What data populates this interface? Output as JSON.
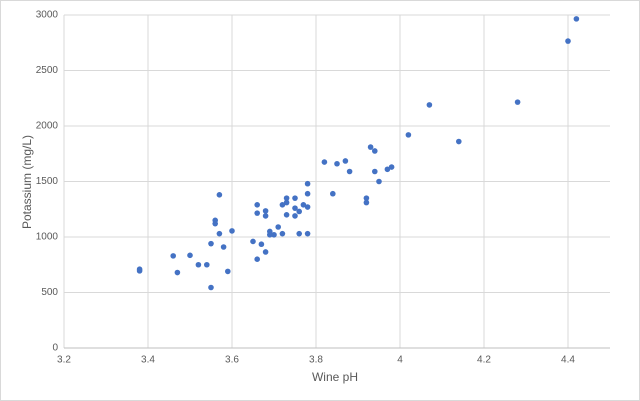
{
  "chart_data": {
    "type": "scatter",
    "x_label": "Wine pH",
    "y_label": "Potassium (mg/L)",
    "color": "#4472c4",
    "grid": true,
    "xlim": [
      3.2,
      4.5
    ],
    "xticks": [
      3.2,
      3.4,
      3.6,
      3.8,
      4,
      4.2,
      4.4
    ],
    "ylim": [
      0,
      3000
    ],
    "yticks": [
      0,
      500,
      1000,
      1500,
      2000,
      2500,
      3000
    ],
    "x": [
      3.38,
      3.38,
      3.46,
      3.47,
      3.5,
      3.52,
      3.54,
      3.55,
      3.55,
      3.56,
      3.56,
      3.57,
      3.57,
      3.58,
      3.59,
      3.6,
      3.65,
      3.66,
      3.66,
      3.66,
      3.67,
      3.68,
      3.68,
      3.68,
      3.69,
      3.69,
      3.7,
      3.71,
      3.72,
      3.72,
      3.73,
      3.73,
      3.73,
      3.75,
      3.75,
      3.75,
      3.76,
      3.76,
      3.77,
      3.78,
      3.78,
      3.78,
      3.78,
      3.82,
      3.84,
      3.85,
      3.87,
      3.88,
      3.92,
      3.92,
      3.93,
      3.94,
      3.94,
      3.95,
      3.97,
      3.98,
      4.02,
      4.07,
      4.14,
      4.28,
      4.4,
      4.42
    ],
    "values": [
      710,
      695,
      830,
      680,
      835,
      750,
      750,
      545,
      940,
      1120,
      1150,
      1380,
      1030,
      910,
      690,
      1055,
      960,
      1290,
      1215,
      800,
      935,
      1190,
      1235,
      865,
      1020,
      1050,
      1020,
      1090,
      1290,
      1030,
      1310,
      1350,
      1200,
      1350,
      1260,
      1190,
      1030,
      1230,
      1290,
      1480,
      1390,
      1270,
      1030,
      1675,
      1390,
      1660,
      1685,
      1590,
      1350,
      1310,
      1810,
      1775,
      1590,
      1500,
      1610,
      1630,
      1920,
      2190,
      1860,
      2215,
      2765,
      2965
    ]
  }
}
